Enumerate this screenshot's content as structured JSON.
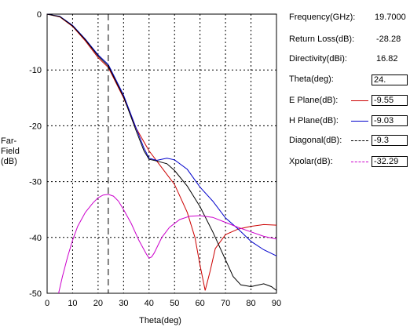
{
  "ylabel": [
    "Far-",
    "Field",
    "(dB)"
  ],
  "info": [
    {
      "label": "Frequency(GHz):",
      "value": "19.7000"
    },
    {
      "label": "Return Loss(dB):",
      "value": "-28.28"
    },
    {
      "label": "Directivity(dBi):",
      "value": "16.82"
    }
  ],
  "theta_label": "Theta(deg):",
  "theta_value": "24.",
  "legend": [
    {
      "label": "E Plane(dB):",
      "value": "-9.55",
      "color": "#cc0000",
      "style": "solid"
    },
    {
      "label": "H Plane(dB):",
      "value": "-9.03",
      "color": "#0000cc",
      "style": "solid"
    },
    {
      "label": "Diagonal(dB):",
      "value": "-9.3",
      "color": "#000000",
      "style": "dashed"
    },
    {
      "label": "Xpolar(dB):",
      "value": "-32.29",
      "color": "#cc00cc",
      "style": "dashed"
    }
  ],
  "chart_data": {
    "type": "line",
    "xlabel": "Theta(deg)",
    "ylabel": "Far-Field (dB)",
    "xlim": [
      0,
      90
    ],
    "ylim": [
      -50,
      0
    ],
    "xticks": [
      0,
      10,
      20,
      30,
      40,
      50,
      60,
      70,
      80,
      90
    ],
    "yticks": [
      0,
      -10,
      -20,
      -30,
      -40,
      -50
    ],
    "grid": true,
    "cursor_theta": 24,
    "series": [
      {
        "name": "E Plane",
        "color": "#cc0000",
        "x": [
          0,
          5,
          10,
          15,
          20,
          24,
          30,
          35,
          40,
          45,
          50,
          55,
          58,
          60,
          62,
          64,
          66,
          70,
          75,
          80,
          85,
          90
        ],
        "y": [
          0,
          -0.5,
          -2.2,
          -4.8,
          -7.8,
          -9.55,
          -15,
          -20.5,
          -24.5,
          -27.5,
          -30.5,
          -35.5,
          -40,
          -45,
          -49.5,
          -46,
          -42,
          -39.5,
          -38.5,
          -38,
          -37.7,
          -37.8
        ]
      },
      {
        "name": "H Plane",
        "color": "#0000cc",
        "x": [
          0,
          5,
          10,
          15,
          20,
          24,
          30,
          35,
          38,
          40,
          43,
          47,
          50,
          55,
          60,
          65,
          70,
          75,
          80,
          85,
          90
        ],
        "y": [
          0,
          -0.4,
          -2.0,
          -4.5,
          -7.3,
          -9.03,
          -14.5,
          -20.5,
          -24,
          -25.8,
          -26.2,
          -25.8,
          -26.1,
          -27.8,
          -31,
          -33.5,
          -36.5,
          -38.5,
          -40.7,
          -42.2,
          -43.3
        ]
      },
      {
        "name": "Diagonal",
        "color": "#000000",
        "x": [
          0,
          5,
          10,
          15,
          20,
          24,
          30,
          35,
          38,
          40,
          43,
          47,
          50,
          55,
          60,
          65,
          70,
          73,
          76,
          80,
          85,
          88,
          90
        ],
        "y": [
          0,
          -0.45,
          -2.1,
          -4.6,
          -7.5,
          -9.3,
          -14.8,
          -21,
          -24.5,
          -26,
          -26.3,
          -26.8,
          -28,
          -30.8,
          -34.5,
          -39,
          -44,
          -47,
          -48.5,
          -48.8,
          -48.3,
          -48.8,
          -49.5
        ]
      },
      {
        "name": "Xpolar",
        "color": "#cc00cc",
        "x": [
          4.5,
          6,
          8,
          10,
          12,
          15,
          18,
          20,
          22,
          24,
          26,
          28,
          30,
          33,
          36,
          39,
          40,
          41,
          42,
          45,
          48,
          52,
          56,
          60,
          65,
          70,
          75,
          80,
          85,
          90
        ],
        "y": [
          -50,
          -47,
          -43.5,
          -40.5,
          -38,
          -35.5,
          -33.8,
          -32.9,
          -32.4,
          -32.29,
          -32.6,
          -33.5,
          -35,
          -37.5,
          -40.5,
          -43,
          -43.7,
          -43.5,
          -42.8,
          -40,
          -38.2,
          -36.8,
          -36.2,
          -36.1,
          -36.4,
          -37.3,
          -38.2,
          -39,
          -39.8,
          -40.3
        ]
      }
    ]
  }
}
